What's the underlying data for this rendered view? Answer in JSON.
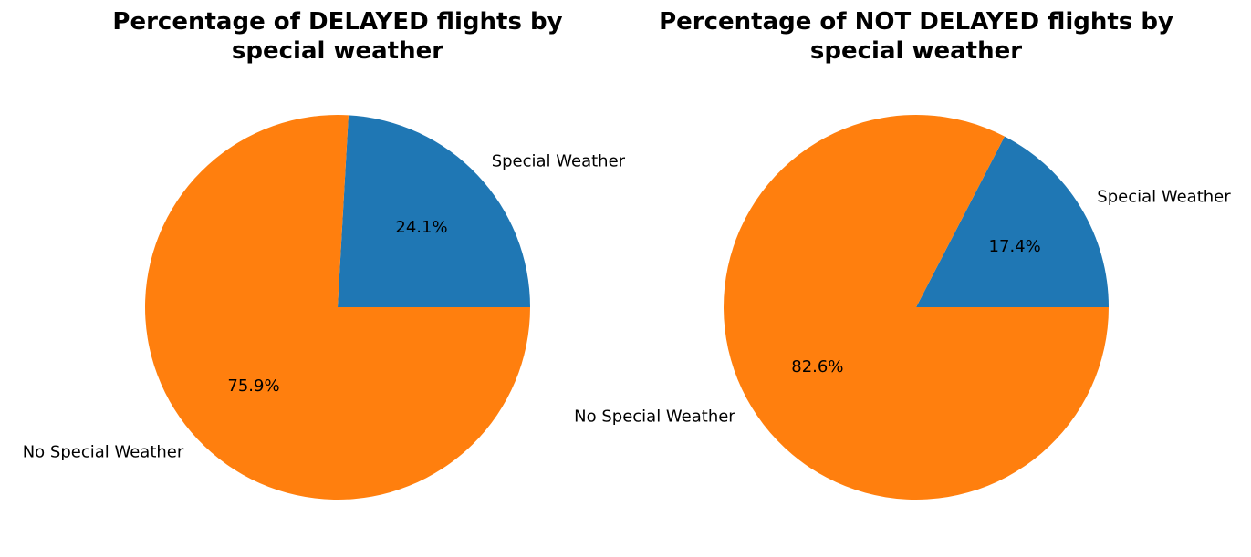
{
  "chart_data": [
    {
      "type": "pie",
      "title_lines": [
        "Percentage of DELAYED flights by",
        "special weather"
      ],
      "slices": [
        {
          "label": "Special Weather",
          "value": 24.1,
          "pct_text": "24.1%",
          "color": "#1f77b4"
        },
        {
          "label": "No Special Weather",
          "value": 75.9,
          "pct_text": "75.9%",
          "color": "#ff7f0e"
        }
      ],
      "start_angle_deg": 0,
      "direction": "counterclockwise"
    },
    {
      "type": "pie",
      "title_lines": [
        "Percentage of NOT DELAYED flights by",
        "special weather"
      ],
      "slices": [
        {
          "label": "Special Weather",
          "value": 17.4,
          "pct_text": "17.4%",
          "color": "#1f77b4"
        },
        {
          "label": "No Special Weather",
          "value": 82.6,
          "pct_text": "82.6%",
          "color": "#ff7f0e"
        }
      ],
      "start_angle_deg": 0,
      "direction": "counterclockwise"
    }
  ]
}
